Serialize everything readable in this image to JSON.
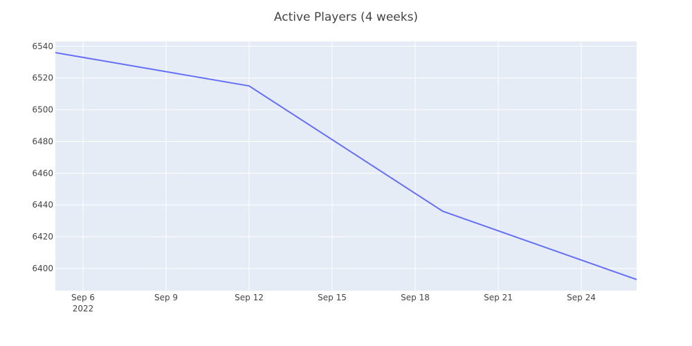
{
  "chart_data": {
    "type": "line",
    "title": "Active Players (4 weeks)",
    "xlabel": "",
    "ylabel": "",
    "x": [
      "2022-09-05",
      "2022-09-12",
      "2022-09-19",
      "2022-09-26"
    ],
    "series": [
      {
        "values": [
          6536,
          6515,
          6436,
          6393
        ],
        "color": "#636efa"
      }
    ],
    "xlim": [
      "2022-09-05",
      "2022-09-26"
    ],
    "ylim": [
      6386,
      6543
    ],
    "x_ticks": [
      {
        "date": "2022-09-06",
        "label": "Sep 6",
        "sublabel": "2022"
      },
      {
        "date": "2022-09-09",
        "label": "Sep 9"
      },
      {
        "date": "2022-09-12",
        "label": "Sep 12"
      },
      {
        "date": "2022-09-15",
        "label": "Sep 15"
      },
      {
        "date": "2022-09-18",
        "label": "Sep 18"
      },
      {
        "date": "2022-09-21",
        "label": "Sep 21"
      },
      {
        "date": "2022-09-24",
        "label": "Sep 24"
      }
    ],
    "y_ticks": [
      6400,
      6420,
      6440,
      6460,
      6480,
      6500,
      6520,
      6540
    ],
    "grid": true,
    "plot_background": "#e5ecf6"
  }
}
